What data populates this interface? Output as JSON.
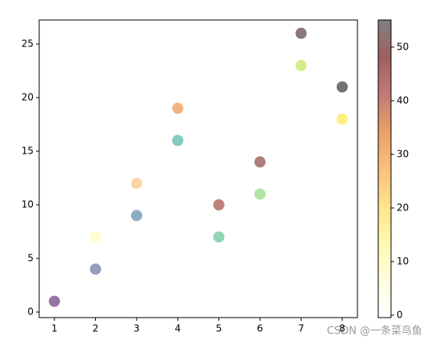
{
  "chart_data": {
    "type": "scatter",
    "series": [
      {
        "x": [
          1,
          2,
          3,
          4,
          5,
          6,
          7,
          8
        ],
        "values": [
          1,
          4,
          9,
          16,
          7,
          11,
          23,
          21
        ],
        "colors": [
          "#440154",
          "#3e4a89",
          "#31688e",
          "#1f9e89",
          "#35b779",
          "#6ece58",
          "#b5de2b",
          "#000000"
        ]
      },
      {
        "x": [
          2,
          3,
          4,
          5,
          6,
          7,
          8
        ],
        "values": [
          7,
          12,
          19,
          10,
          14,
          26,
          18
        ],
        "colors": [
          "#fffbb0",
          "#fdb45c",
          "#e8751a",
          "#8b1a10",
          "#6e1410",
          "#2e0a0a",
          "#ffe31a"
        ]
      }
    ],
    "opacity": 0.55,
    "xlim": [
      0.63,
      8.37
    ],
    "xticks": [
      1,
      2,
      3,
      4,
      5,
      6,
      7,
      8
    ],
    "ylim": [
      -0.52,
      27.24
    ],
    "yticks": [
      0,
      5,
      10,
      15,
      20,
      25
    ],
    "colorbar": {
      "lim": [
        -0.45,
        55.07
      ],
      "ticks": [
        0,
        10,
        20,
        30,
        40,
        50
      ],
      "colors": [
        "#ffffff",
        "#fffde0",
        "#fff9b0",
        "#ffe38a",
        "#fbbf7c",
        "#e9a068",
        "#c07a78",
        "#a06060",
        "#808080"
      ]
    },
    "watermark": "CSDN @一条菜鸟鱼"
  }
}
